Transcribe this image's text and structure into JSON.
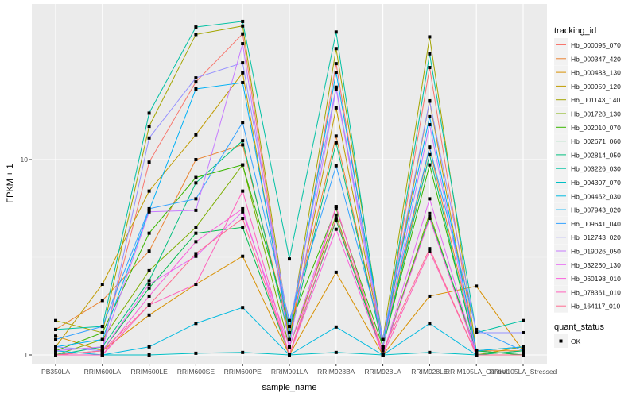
{
  "chart_data": {
    "type": "line",
    "title": "",
    "xlabel": "sample_name",
    "ylabel": "FPKM + 1",
    "yscale": "log10",
    "ylim": [
      0.96,
      62
    ],
    "yticks": [
      {
        "value": 1,
        "label": "1"
      },
      {
        "value": 10,
        "label": "10"
      }
    ],
    "grid": true,
    "categories": [
      "PB350LA",
      "RRIM600LA",
      "RRIM600LE",
      "RRIM600SE",
      "RRIM600PE",
      "RRIM901LA",
      "RRIM928BA",
      "RRIM928LA",
      "RRIM928LE",
      "RRIM105LA_Control",
      "RRIM105LA_Stressed"
    ],
    "legend": {
      "title": "tracking_id",
      "placement": "right"
    },
    "shape_legend": {
      "title": "quant_status",
      "entries": [
        "OK"
      ]
    },
    "series": [
      {
        "name": "Hb_000095_070",
        "color": "#F8766D",
        "values": [
          1.05,
          1.1,
          9.7,
          25,
          44,
          1.2,
          31,
          1.1,
          29.6,
          1.0,
          1.0
        ]
      },
      {
        "name": "Hb_000347_420",
        "color": "#EA8331",
        "values": [
          1.35,
          1.9,
          3.4,
          10,
          11.9,
          1.3,
          13.2,
          1.1,
          11.5,
          1.05,
          1.05
        ]
      },
      {
        "name": "Hb_000483_130",
        "color": "#D89000",
        "values": [
          1.25,
          1.05,
          1.6,
          2.3,
          3.2,
          1.0,
          2.65,
          1.0,
          2.0,
          2.25,
          1.05
        ]
      },
      {
        "name": "Hb_000959_120",
        "color": "#C09B00",
        "values": [
          1.1,
          2.3,
          6.9,
          13.4,
          27.8,
          1.2,
          18.4,
          1.1,
          19.9,
          1.0,
          1.1
        ]
      },
      {
        "name": "Hb_001143_140",
        "color": "#A3A500",
        "values": [
          1.5,
          1.3,
          14.8,
          43.7,
          48.3,
          1.3,
          37,
          1.2,
          42.5,
          1.05,
          1.0
        ]
      },
      {
        "name": "Hb_001728_130",
        "color": "#7CAE00",
        "values": [
          1.0,
          1.2,
          2.7,
          4.5,
          9.4,
          1.1,
          5.2,
          1.0,
          5.3,
          1.0,
          1.05
        ]
      },
      {
        "name": "Hb_002010_070",
        "color": "#39B600",
        "values": [
          1.05,
          1.3,
          4.2,
          8.1,
          9.4,
          1.4,
          5.6,
          1.1,
          9.4,
          1.05,
          1.1
        ]
      },
      {
        "name": "Hb_002671_060",
        "color": "#00BB4E",
        "values": [
          1.0,
          1.05,
          2.2,
          4.2,
          4.5,
          1.0,
          4.9,
          1.0,
          5.1,
          1.05,
          1.0
        ]
      },
      {
        "name": "Hb_002814_050",
        "color": "#00BF7D",
        "values": [
          1.0,
          1.1,
          2.4,
          7.6,
          12.5,
          1.2,
          12.2,
          1.1,
          10.6,
          1.0,
          1.05
        ]
      },
      {
        "name": "Hb_003226_030",
        "color": "#00C1A3",
        "values": [
          1.35,
          1.4,
          17.3,
          47.7,
          51,
          3.1,
          45,
          1.1,
          34.8,
          1.3,
          1.5
        ]
      },
      {
        "name": "Hb_004307_070",
        "color": "#00BFC4",
        "values": [
          1.0,
          1.0,
          1.0,
          1.02,
          1.03,
          1.0,
          1.03,
          1.0,
          1.03,
          1.0,
          1.0
        ]
      },
      {
        "name": "Hb_004462_030",
        "color": "#00BAE0",
        "values": [
          1.05,
          1.0,
          1.1,
          1.45,
          1.75,
          1.0,
          1.39,
          1.0,
          1.45,
          1.0,
          1.0
        ]
      },
      {
        "name": "Hb_007943_020",
        "color": "#00B0F6",
        "values": [
          1.1,
          1.2,
          5.5,
          23,
          24.8,
          1.3,
          28,
          1.2,
          16.6,
          1.05,
          1.1
        ]
      },
      {
        "name": "Hb_009641_040",
        "color": "#35A2FF",
        "values": [
          1.2,
          1.4,
          5.6,
          6.3,
          15.5,
          1.5,
          9.3,
          1.2,
          11.6,
          1.35,
          1.05
        ]
      },
      {
        "name": "Hb_012743_020",
        "color": "#9590FF",
        "values": [
          1.1,
          1.05,
          12.9,
          26.2,
          31.3,
          1.4,
          23.5,
          1.2,
          20,
          1.3,
          1.3
        ]
      },
      {
        "name": "Hb_019026_050",
        "color": "#C77CFF",
        "values": [
          1.05,
          1.1,
          5.4,
          5.5,
          39.2,
          1.1,
          23,
          1.1,
          15.1,
          1.0,
          1.0
        ]
      },
      {
        "name": "Hb_032260_130",
        "color": "#E76BF3",
        "values": [
          1.0,
          1.05,
          2.3,
          3.2,
          5.4,
          1.1,
          5.75,
          1.0,
          6.3,
          1.0,
          1.0
        ]
      },
      {
        "name": "Hb_060198_010",
        "color": "#FA62DB",
        "values": [
          1.0,
          1.0,
          2.0,
          3.8,
          5.6,
          1.0,
          4.4,
          1.0,
          5.0,
          1.0,
          1.0
        ]
      },
      {
        "name": "Hb_078361_010",
        "color": "#FF62BC",
        "values": [
          1.0,
          1.0,
          1.8,
          2.3,
          6.9,
          1.0,
          5.75,
          1.0,
          3.4,
          1.0,
          1.0
        ]
      },
      {
        "name": "Hb_164117_010",
        "color": "#FF6C91",
        "values": [
          1.0,
          1.05,
          1.8,
          3.3,
          5.0,
          1.0,
          5.0,
          1.05,
          3.5,
          1.0,
          1.0
        ]
      }
    ]
  }
}
